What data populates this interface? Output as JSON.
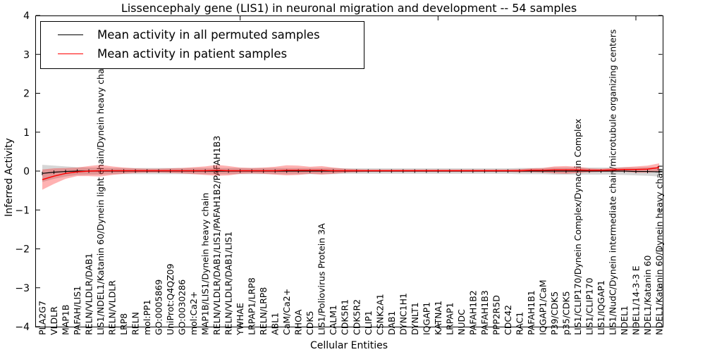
{
  "legend": {
    "items": [
      {
        "label": "Mean activity in all permuted samples",
        "color": "#000000"
      },
      {
        "label": "Mean activity in patient samples",
        "color": "#ff0000"
      }
    ]
  },
  "chart_data": {
    "type": "line",
    "title": "Lissencephaly gene (LIS1) in neuronal migration and development -- 54 samples",
    "xlabel": "Cellular Entities",
    "ylabel": "Inferred Activity",
    "ylim": [
      -4,
      4
    ],
    "yticks": [
      4,
      3,
      2,
      1,
      0,
      -1,
      -2,
      -3,
      -4
    ],
    "grid": false,
    "legend_position": "upper left",
    "categories": [
      "PLA2G7",
      "VLDLR",
      "MAP1B",
      "PAFAH/LIS1",
      "RELN/VLDLR/DAB1",
      "LIS1/NDEL1/Katanin 60/Dynein light chain/Dynein heavy chain",
      "RELN/VLDLR",
      "LRP8",
      "RELN",
      "mol:PP1",
      "GO:0005869",
      "UniProt:Q4QZ09",
      "GO:0030286",
      "mol:Ca2+",
      "MAP1B/LIS1/Dynein heavy chain",
      "RELN/VLDLR/DAB1/LIS1/PAFAH1B2/PAFAH1B3",
      "RELN/VLDLR/DAB1/LIS1",
      "YWHAE",
      "LRPAP1/LRP8",
      "RELN/LRP8",
      "ABL1",
      "CaM/Ca2+",
      "RHOA",
      "CDK5",
      "LIS1/Poliovirus Protein 3A",
      "CALM1",
      "CDK5R1",
      "CDK5R2",
      "CLIP1",
      "CSNK2A1",
      "DAB1",
      "DYNC1H1",
      "DYNLT1",
      "IQGAP1",
      "KATNA1",
      "LRPAP1",
      "NUDC",
      "PAFAH1B2",
      "PAFAH1B3",
      "PPP2R5D",
      "CDC42",
      "RAC1",
      "PAFAH1B1",
      "IQGAP1/CaM",
      "P39/CDK5",
      "p35/CDK5",
      "LIS1/CLIP170/Dynein Complex/Dynactin Complex",
      "LIS1/CLIP170",
      "LIS1/IQGAP1",
      "LIS1/NudC/Dynein intermediate chain/microtubule organizing centers",
      "NDEL1",
      "NDEL1/14-3-3 E",
      "NDEL1/Katanin 60",
      "NDEL1/Katanin 60/Dynein heavy chain"
    ],
    "series": [
      {
        "name": "Mean activity in all permuted samples",
        "color": "#000000",
        "band_color": "#999999",
        "band_opacity": 0.4,
        "marker": "tick",
        "values": [
          -0.06,
          -0.03,
          -0.01,
          0,
          0,
          0,
          0,
          0,
          0,
          0,
          0,
          0,
          0,
          0,
          0,
          0,
          0,
          0,
          0,
          0,
          0,
          0,
          0,
          0,
          0,
          0,
          0,
          0,
          0,
          0,
          0,
          0,
          0,
          0,
          0,
          0,
          0,
          0,
          0,
          0,
          0,
          0,
          0,
          0,
          0,
          0,
          0,
          0,
          0,
          0,
          0,
          -0.01,
          -0.01,
          -0.02
        ],
        "band": [
          0.22,
          0.17,
          0.13,
          0.1,
          0.09,
          0.09,
          0.08,
          0.08,
          0.08,
          0.08,
          0.08,
          0.08,
          0.08,
          0.08,
          0.08,
          0.08,
          0.08,
          0.08,
          0.08,
          0.08,
          0.08,
          0.08,
          0.08,
          0.08,
          0.08,
          0.08,
          0.07,
          0.07,
          0.07,
          0.07,
          0.07,
          0.07,
          0.07,
          0.07,
          0.07,
          0.07,
          0.07,
          0.07,
          0.07,
          0.07,
          0.07,
          0.08,
          0.08,
          0.08,
          0.09,
          0.09,
          0.09,
          0.09,
          0.09,
          0.09,
          0.1,
          0.1,
          0.11,
          0.12
        ]
      },
      {
        "name": "Mean activity in patient samples",
        "color": "#ff0000",
        "band_color": "#ff0000",
        "band_opacity": 0.3,
        "marker": null,
        "values": [
          -0.22,
          -0.13,
          -0.06,
          -0.02,
          0.0,
          0.01,
          0.01,
          0.01,
          0.01,
          0.01,
          0.01,
          0.01,
          0.01,
          0.01,
          0.01,
          0.02,
          0.01,
          0.01,
          0.01,
          0.01,
          0.01,
          0.02,
          0.02,
          0.02,
          0.02,
          0.01,
          0.01,
          0.01,
          0.01,
          0.01,
          0.01,
          0.01,
          0.01,
          0.01,
          0.01,
          0.01,
          0.01,
          0.01,
          0.01,
          0.01,
          0.01,
          0.01,
          0.02,
          0.02,
          0.03,
          0.03,
          0.03,
          0.02,
          0.02,
          0.03,
          0.04,
          0.04,
          0.05,
          0.09
        ],
        "band": [
          0.26,
          0.2,
          0.14,
          0.11,
          0.13,
          0.15,
          0.11,
          0.08,
          0.06,
          0.05,
          0.05,
          0.06,
          0.07,
          0.09,
          0.11,
          0.14,
          0.12,
          0.08,
          0.07,
          0.08,
          0.1,
          0.13,
          0.12,
          0.09,
          0.11,
          0.08,
          0.05,
          0.04,
          0.03,
          0.03,
          0.03,
          0.03,
          0.03,
          0.03,
          0.03,
          0.03,
          0.03,
          0.03,
          0.03,
          0.03,
          0.03,
          0.04,
          0.05,
          0.06,
          0.09,
          0.1,
          0.08,
          0.05,
          0.04,
          0.05,
          0.06,
          0.08,
          0.09,
          0.11
        ]
      }
    ]
  }
}
